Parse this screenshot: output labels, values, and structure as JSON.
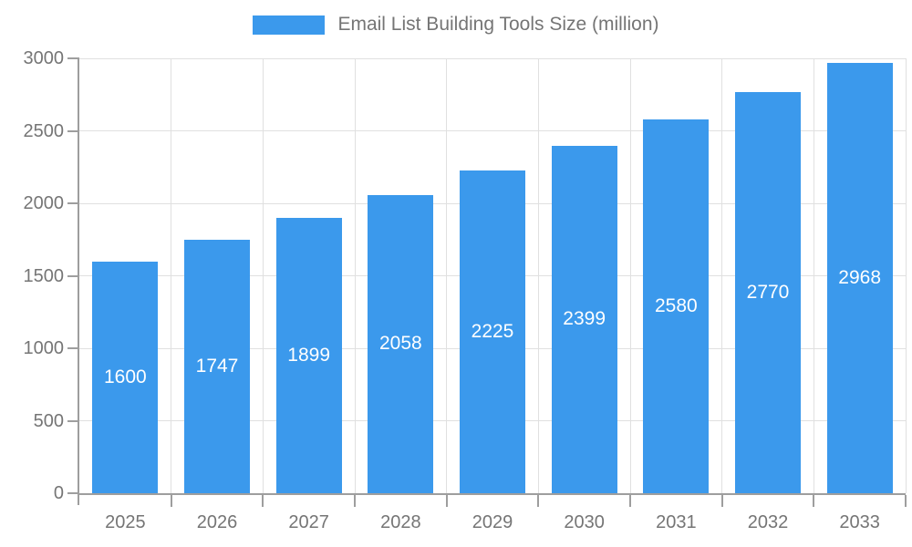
{
  "chart_data": {
    "type": "bar",
    "title": "Email List Building Tools Size (million)",
    "categories": [
      "2025",
      "2026",
      "2027",
      "2028",
      "2029",
      "2030",
      "2031",
      "2032",
      "2033"
    ],
    "series": [
      {
        "name": "Email List Building Tools Size (million)",
        "values": [
          1600,
          1747,
          1899,
          2058,
          2225,
          2399,
          2580,
          2770,
          2968
        ]
      }
    ],
    "data_labels_shown": true,
    "xlabel": "",
    "ylabel": "",
    "ylim": [
      0,
      3000
    ],
    "y_ticks": [
      0,
      500,
      1000,
      1500,
      2000,
      2500,
      3000
    ],
    "grid": true,
    "legend_position": "top",
    "colors": {
      "bar": "#3B99EC",
      "grid": "#E0E0E0",
      "axis": "#9E9E9E",
      "tick_text": "#757575",
      "bar_label_text": "#FFFFFF",
      "background": "#FFFFFF"
    }
  }
}
